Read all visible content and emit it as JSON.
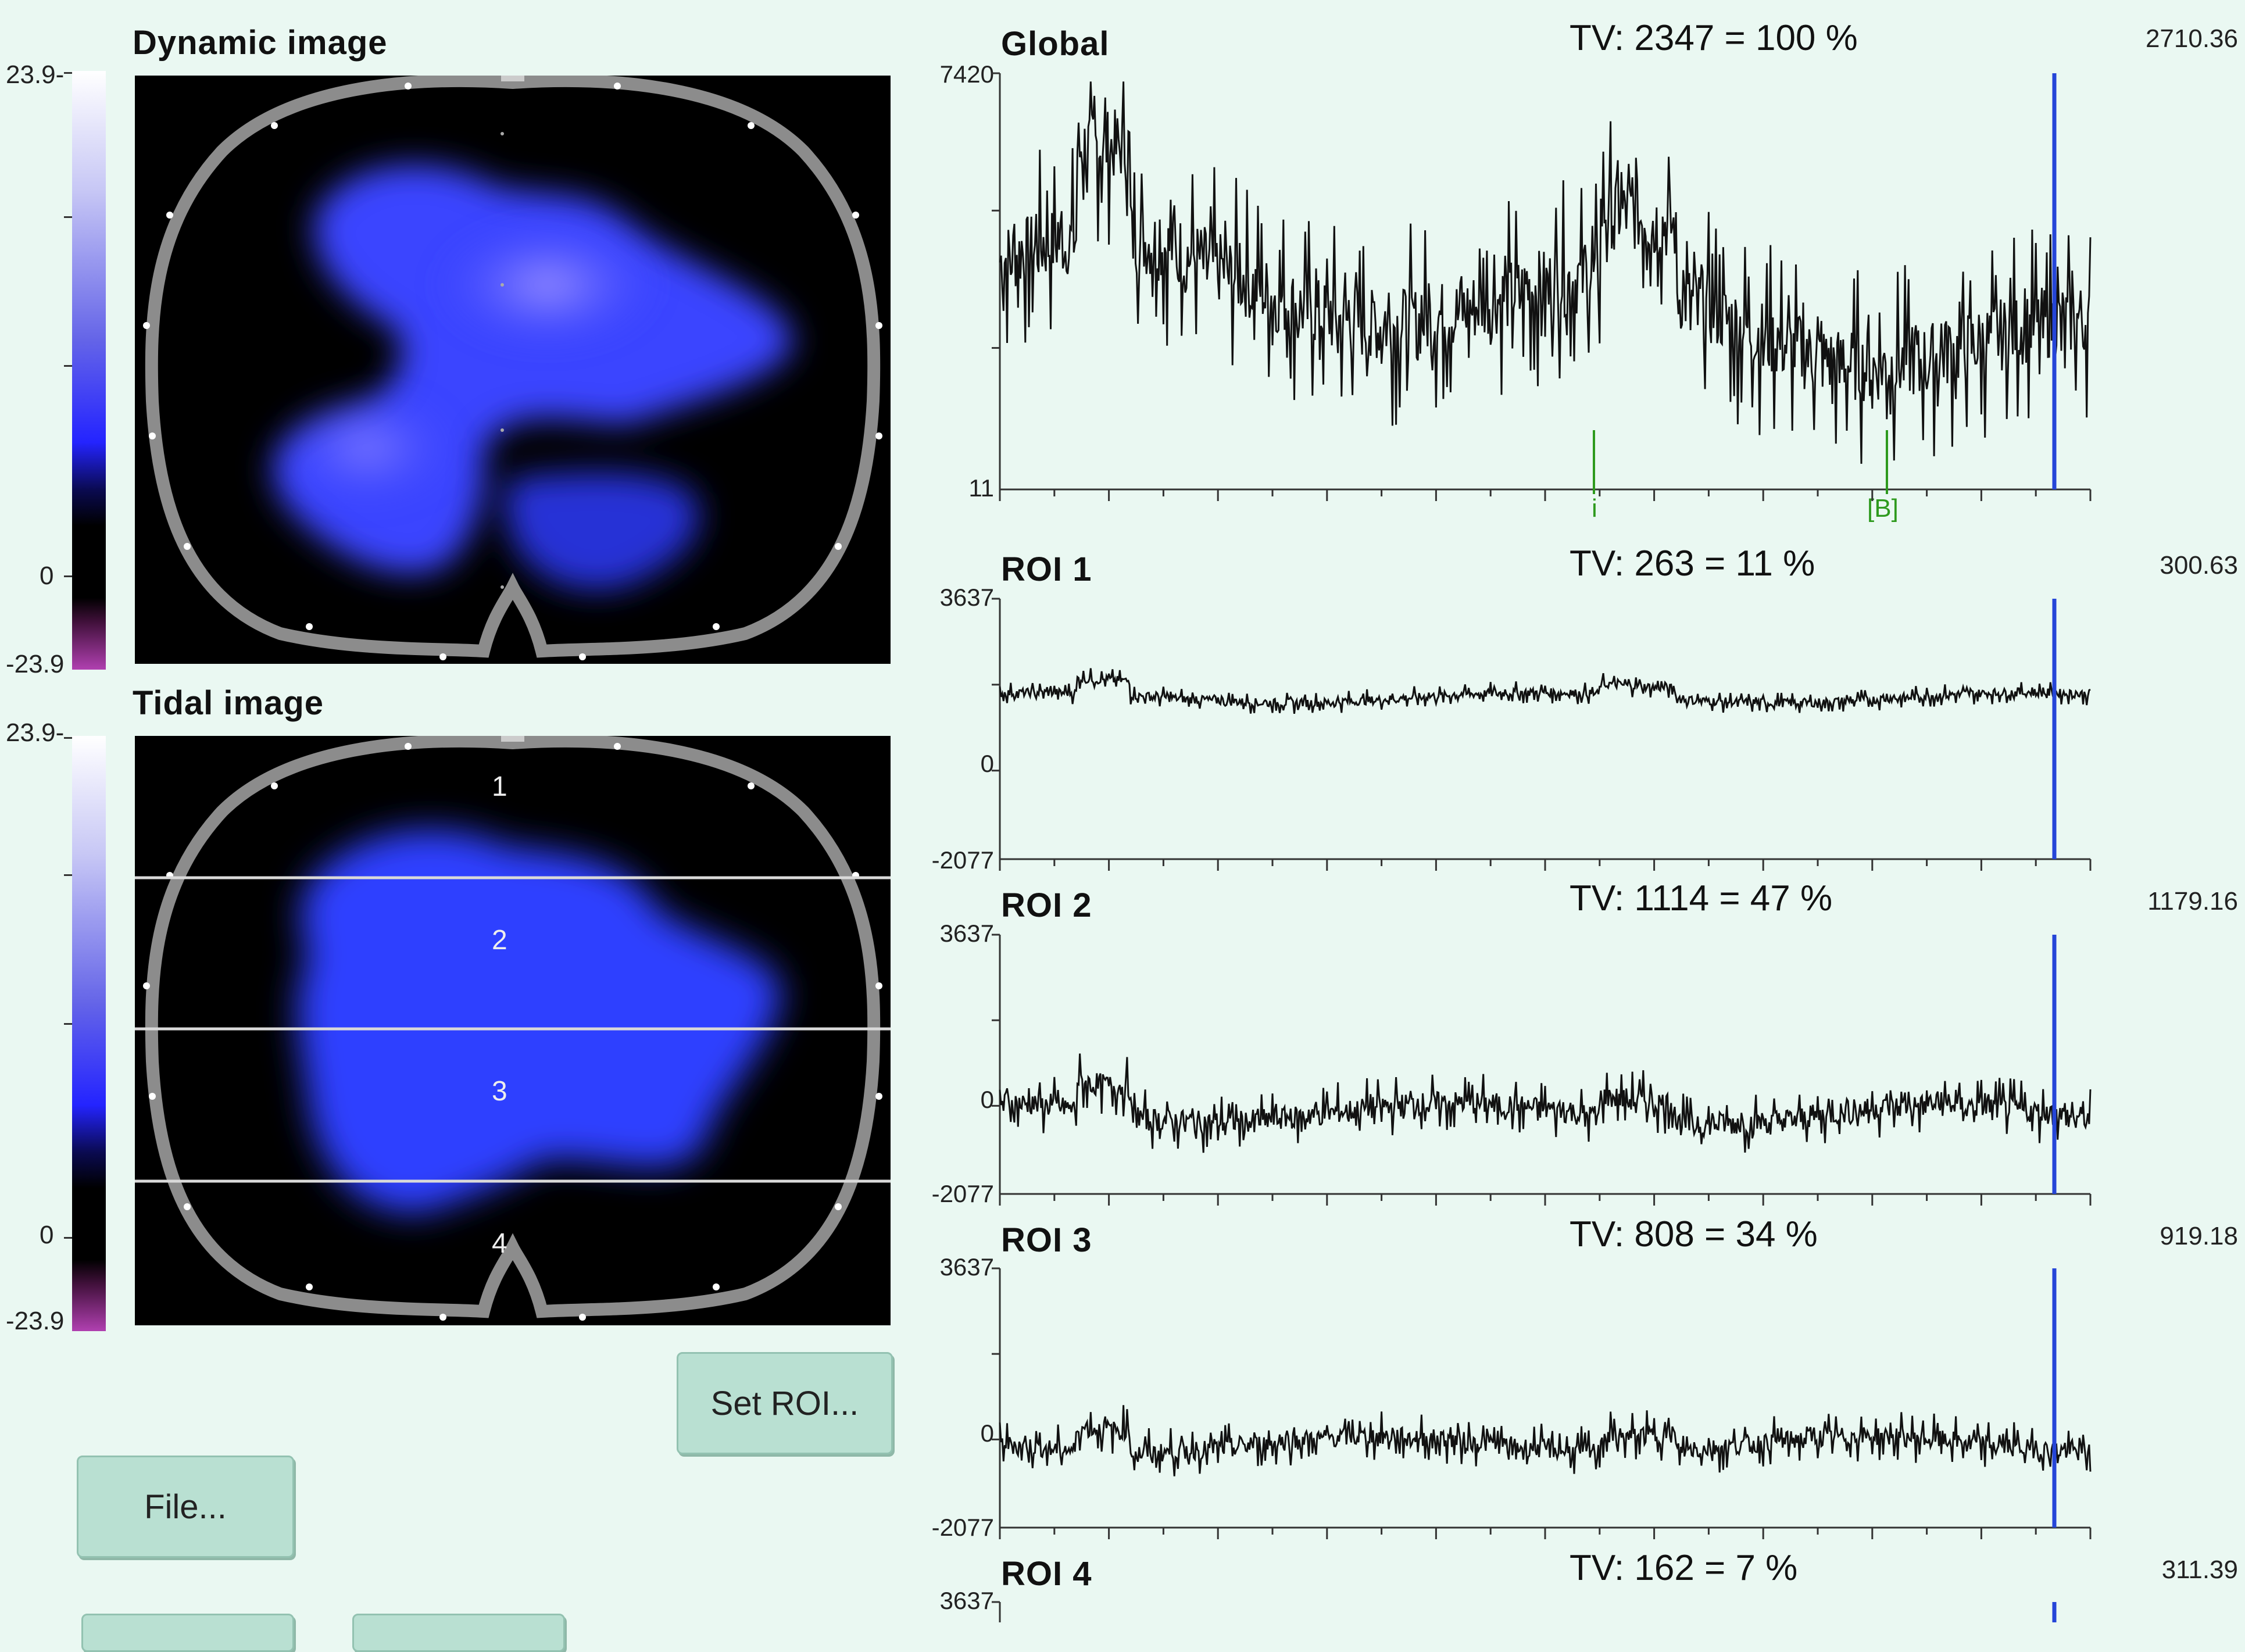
{
  "left": {
    "dynamic": {
      "title": "Dynamic image",
      "scale_max": "23.9-",
      "scale_zero": "0",
      "scale_min": "-23.9"
    },
    "tidal": {
      "title": "Tidal image",
      "scale_max": "23.9-",
      "scale_zero": "0",
      "scale_min": "-23.9",
      "roi_numbers": [
        "1",
        "2",
        "3",
        "4"
      ]
    },
    "buttons": {
      "set_roi": "Set ROI...",
      "file": "File..."
    }
  },
  "traces": [
    {
      "id": "global",
      "title": "Global",
      "tv": "TV: 2347 = 100 %",
      "right_value": "2710.36",
      "y_top": "7420",
      "y_bottom": "11",
      "markers": [
        {
          "label": "i",
          "color": "#2e9a1e"
        },
        {
          "label": "[B]",
          "color": "#2e9a1e"
        }
      ]
    },
    {
      "id": "roi1",
      "title": "ROI 1",
      "tv": "TV: 263 = 11 %",
      "right_value": "300.63",
      "y_top": "3637",
      "y_mid": "0",
      "y_bottom": "-2077"
    },
    {
      "id": "roi2",
      "title": "ROI 2",
      "tv": "TV: 1114 = 47 %",
      "right_value": "1179.16",
      "y_top": "3637",
      "y_mid": "0",
      "y_bottom": "-2077"
    },
    {
      "id": "roi3",
      "title": "ROI 3",
      "tv": "TV: 808 = 34 %",
      "right_value": "919.18",
      "y_top": "3637",
      "y_mid": "0",
      "y_bottom": "-2077"
    },
    {
      "id": "roi4",
      "title": "ROI 4",
      "tv": "TV: 162 = 7 %",
      "right_value": "311.39",
      "y_top": "3637"
    }
  ],
  "colors": {
    "background": "#eaf8f2",
    "cursor_line": "#2545d8",
    "trace": "#111111",
    "marker": "#2e9a1e",
    "image_fill": "#3a45ff"
  }
}
